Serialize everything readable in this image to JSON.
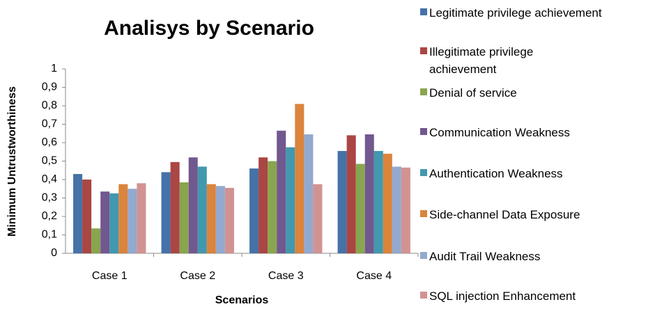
{
  "chart_data": {
    "type": "bar",
    "title": "Analisys by Scenario",
    "xlabel": "Scenarios",
    "ylabel": "Minimum Untrustworthiness",
    "categories": [
      "Case 1",
      "Case 2",
      "Case 3",
      "Case 4"
    ],
    "series": [
      {
        "name": "Legitimate privilege achievement",
        "color": "#4572a7",
        "values": [
          0.43,
          0.44,
          0.46,
          0.555
        ]
      },
      {
        "name": "Illegitimate privilege achievement",
        "color": "#aa4643",
        "values": [
          0.4,
          0.495,
          0.52,
          0.64
        ]
      },
      {
        "name": "Denial of service",
        "color": "#89a54e",
        "values": [
          0.135,
          0.385,
          0.5,
          0.485
        ]
      },
      {
        "name": "Communication Weakness",
        "color": "#71588f",
        "values": [
          0.335,
          0.52,
          0.665,
          0.645
        ]
      },
      {
        "name": "Authentication Weakness",
        "color": "#4198af",
        "values": [
          0.325,
          0.47,
          0.575,
          0.555
        ]
      },
      {
        "name": "Side-channel Data Exposure",
        "color": "#db843d",
        "values": [
          0.375,
          0.375,
          0.81,
          0.54
        ]
      },
      {
        "name": "Audit Trail Weakness",
        "color": "#93a9cf",
        "values": [
          0.35,
          0.365,
          0.645,
          0.47
        ]
      },
      {
        "name": "SQL injection Enhancement",
        "color": "#d19392",
        "values": [
          0.38,
          0.355,
          0.375,
          0.465
        ]
      }
    ],
    "ylim": [
      0,
      1
    ],
    "yticks": [
      0,
      {
        "value": 0.1,
        "label": "0,1"
      },
      {
        "value": 0.2,
        "label": "0,2"
      },
      {
        "value": 0.3,
        "label": "0,3"
      },
      {
        "value": 0.4,
        "label": "0,4"
      },
      {
        "value": 0.5,
        "label": "0,5"
      },
      {
        "value": 0.6,
        "label": "0,6"
      },
      {
        "value": 0.7,
        "label": "0,7"
      },
      {
        "value": 0.8,
        "label": "0,8"
      },
      {
        "value": 0.9,
        "label": "0,9"
      },
      1
    ],
    "legend": "right"
  }
}
